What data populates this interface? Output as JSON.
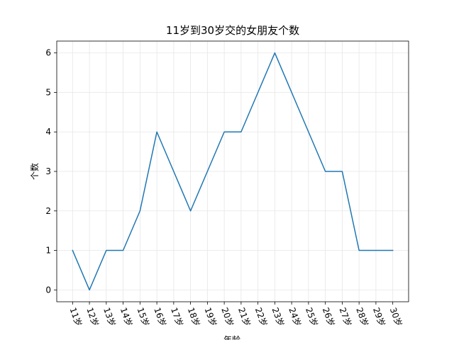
{
  "chart_data": {
    "type": "line",
    "title": "11岁到30岁交的女朋友个数",
    "xlabel": "年龄",
    "ylabel": "个数",
    "categories": [
      "11岁",
      "12岁",
      "13岁",
      "14岁",
      "15岁",
      "16岁",
      "17岁",
      "18岁",
      "19岁",
      "20岁",
      "21岁",
      "22岁",
      "23岁",
      "24岁",
      "25岁",
      "26岁",
      "27岁",
      "28岁",
      "29岁",
      "30岁"
    ],
    "series": [
      {
        "values": [
          1,
          0,
          1,
          1,
          2,
          4,
          3,
          2,
          3,
          4,
          4,
          5,
          6,
          5,
          4,
          3,
          3,
          1,
          1,
          1
        ],
        "color": "#1f77b4"
      }
    ],
    "yticks": [
      0,
      1,
      2,
      3,
      4,
      5,
      6
    ],
    "ylim": [
      -0.3,
      6.3
    ],
    "grid": true,
    "xtick_rotation": 70
  }
}
